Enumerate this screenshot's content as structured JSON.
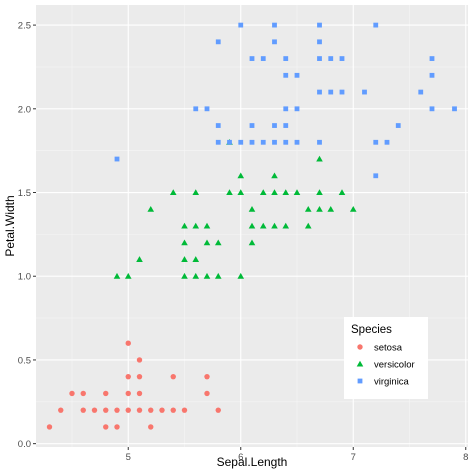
{
  "chart_data": {
    "type": "scatter",
    "xlabel": "Sepal.Length",
    "ylabel": "Petal.Width",
    "xlim": [
      4.18,
      8.02
    ],
    "ylim": [
      -0.02,
      2.62
    ],
    "x_ticks": [
      5,
      6,
      7,
      8
    ],
    "x_tick_labels": [
      "5",
      "6",
      "7",
      "8"
    ],
    "y_ticks": [
      0.0,
      0.5,
      1.0,
      1.5,
      2.0,
      2.5
    ],
    "y_tick_labels": [
      "0.0",
      "0.5",
      "1.0",
      "1.5",
      "2.0",
      "2.5"
    ],
    "grid": true,
    "panel_background": "#EBEBEB",
    "legend_title": "Species",
    "legend_position": "bottom-right inside",
    "series": [
      {
        "name": "setosa",
        "color": "#F8766D",
        "marker": "circle",
        "points": [
          [
            4.3,
            0.1
          ],
          [
            4.4,
            0.2
          ],
          [
            4.5,
            0.3
          ],
          [
            4.6,
            0.2
          ],
          [
            4.6,
            0.3
          ],
          [
            4.7,
            0.2
          ],
          [
            4.8,
            0.1
          ],
          [
            4.8,
            0.2
          ],
          [
            4.8,
            0.3
          ],
          [
            4.9,
            0.1
          ],
          [
            4.9,
            0.2
          ],
          [
            5.0,
            0.2
          ],
          [
            5.0,
            0.3
          ],
          [
            5.0,
            0.4
          ],
          [
            5.0,
            0.6
          ],
          [
            5.1,
            0.2
          ],
          [
            5.1,
            0.3
          ],
          [
            5.1,
            0.4
          ],
          [
            5.1,
            0.5
          ],
          [
            5.2,
            0.1
          ],
          [
            5.2,
            0.2
          ],
          [
            5.3,
            0.2
          ],
          [
            5.4,
            0.2
          ],
          [
            5.4,
            0.4
          ],
          [
            5.5,
            0.2
          ],
          [
            5.7,
            0.3
          ],
          [
            5.7,
            0.4
          ],
          [
            5.8,
            0.2
          ]
        ]
      },
      {
        "name": "versicolor",
        "color": "#00BA38",
        "marker": "triangle",
        "points": [
          [
            4.9,
            1.0
          ],
          [
            5.0,
            1.0
          ],
          [
            5.1,
            1.1
          ],
          [
            5.2,
            1.4
          ],
          [
            5.4,
            1.5
          ],
          [
            5.5,
            1.0
          ],
          [
            5.5,
            1.1
          ],
          [
            5.5,
            1.2
          ],
          [
            5.5,
            1.3
          ],
          [
            5.6,
            1.0
          ],
          [
            5.6,
            1.1
          ],
          [
            5.6,
            1.3
          ],
          [
            5.6,
            1.5
          ],
          [
            5.7,
            1.0
          ],
          [
            5.7,
            1.2
          ],
          [
            5.7,
            1.3
          ],
          [
            5.8,
            1.0
          ],
          [
            5.8,
            1.2
          ],
          [
            5.9,
            1.5
          ],
          [
            5.9,
            1.8
          ],
          [
            6.0,
            1.0
          ],
          [
            6.0,
            1.5
          ],
          [
            6.0,
            1.6
          ],
          [
            6.1,
            1.2
          ],
          [
            6.1,
            1.3
          ],
          [
            6.1,
            1.4
          ],
          [
            6.2,
            1.3
          ],
          [
            6.2,
            1.5
          ],
          [
            6.3,
            1.3
          ],
          [
            6.3,
            1.5
          ],
          [
            6.3,
            1.6
          ],
          [
            6.4,
            1.3
          ],
          [
            6.4,
            1.5
          ],
          [
            6.5,
            1.5
          ],
          [
            6.6,
            1.3
          ],
          [
            6.6,
            1.4
          ],
          [
            6.7,
            1.4
          ],
          [
            6.7,
            1.5
          ],
          [
            6.7,
            1.7
          ],
          [
            6.8,
            1.4
          ],
          [
            6.9,
            1.5
          ],
          [
            7.0,
            1.4
          ]
        ]
      },
      {
        "name": "virginica",
        "color": "#619CFF",
        "marker": "square",
        "points": [
          [
            4.9,
            1.7
          ],
          [
            5.6,
            2.0
          ],
          [
            5.7,
            2.0
          ],
          [
            5.8,
            1.8
          ],
          [
            5.8,
            1.9
          ],
          [
            5.8,
            2.4
          ],
          [
            5.9,
            1.8
          ],
          [
            6.0,
            1.8
          ],
          [
            6.0,
            2.5
          ],
          [
            6.1,
            1.8
          ],
          [
            6.1,
            1.9
          ],
          [
            6.1,
            2.3
          ],
          [
            6.2,
            1.8
          ],
          [
            6.2,
            2.3
          ],
          [
            6.3,
            1.8
          ],
          [
            6.3,
            1.9
          ],
          [
            6.3,
            2.4
          ],
          [
            6.3,
            2.5
          ],
          [
            6.4,
            1.8
          ],
          [
            6.4,
            1.9
          ],
          [
            6.4,
            2.0
          ],
          [
            6.4,
            2.2
          ],
          [
            6.4,
            2.3
          ],
          [
            6.5,
            1.8
          ],
          [
            6.5,
            2.0
          ],
          [
            6.5,
            2.2
          ],
          [
            6.7,
            1.8
          ],
          [
            6.7,
            2.1
          ],
          [
            6.7,
            2.3
          ],
          [
            6.7,
            2.4
          ],
          [
            6.7,
            2.5
          ],
          [
            6.8,
            2.1
          ],
          [
            6.8,
            2.3
          ],
          [
            6.9,
            2.1
          ],
          [
            6.9,
            2.3
          ],
          [
            7.1,
            2.1
          ],
          [
            7.2,
            1.6
          ],
          [
            7.2,
            1.8
          ],
          [
            7.2,
            2.5
          ],
          [
            7.3,
            1.8
          ],
          [
            7.4,
            1.9
          ],
          [
            7.6,
            2.1
          ],
          [
            7.7,
            2.0
          ],
          [
            7.7,
            2.2
          ],
          [
            7.7,
            2.3
          ],
          [
            7.9,
            2.0
          ]
        ]
      }
    ]
  }
}
